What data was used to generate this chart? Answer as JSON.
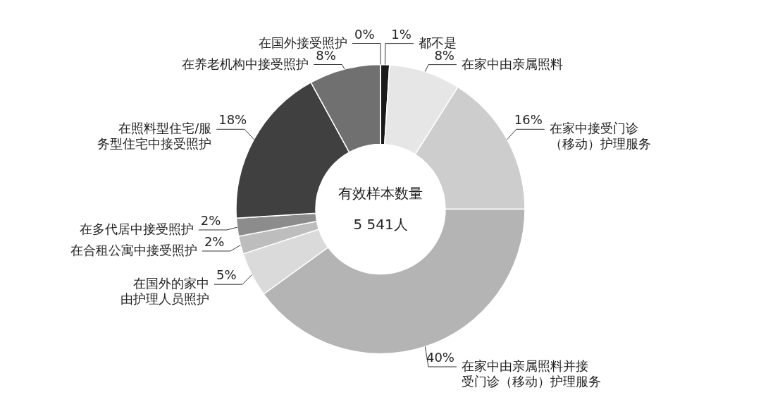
{
  "chart_data": {
    "type": "donut",
    "categories": [
      "都不是",
      "在家中由亲属照料",
      "在家中接受门诊（移动）护理服务",
      "在家中由亲属照料并接受门诊（移动）护理服务",
      "在国外的家中由护理人员照护",
      "在合租公寓中接受照护",
      "在多代居中接受照护",
      "在照料型住宅/服务型住宅中接受照护",
      "在养老机构中接受照护",
      "在国外接受照护"
    ],
    "values": [
      1,
      8,
      16,
      40,
      5,
      2,
      2,
      18,
      8,
      0
    ],
    "value_labels": [
      "1%",
      "8%",
      "16%",
      "40%",
      "5%",
      "2%",
      "2%",
      "18%",
      "8%",
      "0%"
    ],
    "colors": [
      "#1a1a1a",
      "#e6e6e6",
      "#cdcdcd",
      "#b4b4b4",
      "#dadada",
      "#bdbdbd",
      "#8c8c8c",
      "#404040",
      "#707070",
      "#333333"
    ],
    "annotations": [
      "有效样本数量",
      "5 541人"
    ]
  }
}
